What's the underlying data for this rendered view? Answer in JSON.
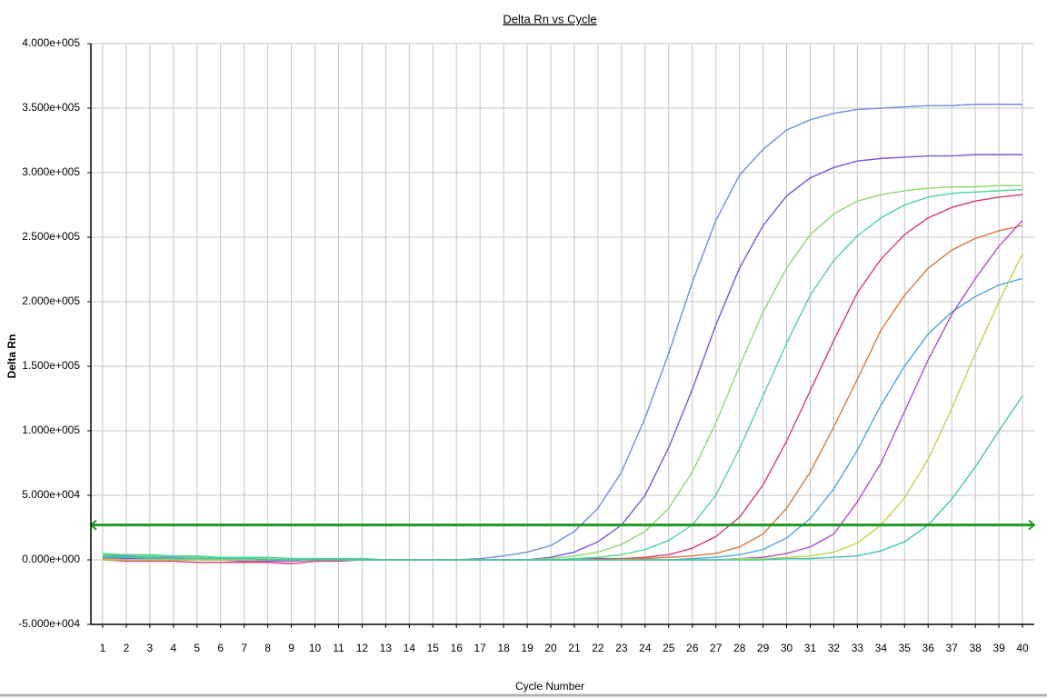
{
  "chart_data": {
    "type": "line",
    "title": "Delta Rn vs Cycle",
    "x_label": "Cycle Number",
    "y_label": "Delta Rn",
    "x": [
      1,
      2,
      3,
      4,
      5,
      6,
      7,
      8,
      9,
      10,
      11,
      12,
      13,
      14,
      15,
      16,
      17,
      18,
      19,
      20,
      21,
      22,
      23,
      24,
      25,
      26,
      27,
      28,
      29,
      30,
      31,
      32,
      33,
      34,
      35,
      36,
      37,
      38,
      39,
      40
    ],
    "xlim": [
      0.5,
      40.5
    ],
    "xticks": [
      1,
      2,
      3,
      4,
      5,
      6,
      7,
      8,
      9,
      10,
      11,
      12,
      13,
      14,
      15,
      16,
      17,
      18,
      19,
      20,
      21,
      22,
      23,
      24,
      25,
      26,
      27,
      28,
      29,
      30,
      31,
      32,
      33,
      34,
      35,
      36,
      37,
      38,
      39,
      40
    ],
    "ylim": [
      -50000,
      400000
    ],
    "yticks": [
      {
        "value": -50000,
        "label": "-5.000e+004"
      },
      {
        "value": 0,
        "label": "0.000e+000"
      },
      {
        "value": 50000,
        "label": "5.000e+004"
      },
      {
        "value": 100000,
        "label": "1.000e+005"
      },
      {
        "value": 150000,
        "label": "1.500e+005"
      },
      {
        "value": 200000,
        "label": "2.000e+005"
      },
      {
        "value": 250000,
        "label": "2.500e+005"
      },
      {
        "value": 300000,
        "label": "3.000e+005"
      },
      {
        "value": 350000,
        "label": "3.500e+005"
      },
      {
        "value": 400000,
        "label": "4.000e+005"
      }
    ],
    "grid": true,
    "threshold": 27000,
    "threshold_color": "#1f9a1f",
    "series": [
      {
        "color": "#6f8fd8",
        "values": [
          3000,
          3000,
          2000,
          2000,
          2000,
          1000,
          1000,
          1000,
          1000,
          0,
          0,
          0,
          0,
          0,
          0,
          0,
          1000,
          3000,
          6000,
          11000,
          22000,
          40000,
          68000,
          110000,
          160000,
          215000,
          263000,
          298000,
          318000,
          333000,
          341000,
          346000,
          349000,
          350000,
          351000,
          352000,
          352000,
          353000,
          353000,
          353000
        ]
      },
      {
        "color": "#7c55d8",
        "values": [
          2000,
          1000,
          1000,
          1000,
          0,
          0,
          -1000,
          -1000,
          0,
          0,
          0,
          0,
          0,
          0,
          0,
          0,
          0,
          0,
          0,
          2000,
          6000,
          14000,
          27000,
          50000,
          87000,
          132000,
          182000,
          226000,
          259000,
          282000,
          296000,
          304000,
          309000,
          311000,
          312000,
          313000,
          313000,
          314000,
          314000,
          314000
        ]
      },
      {
        "color": "#8fd86c",
        "values": [
          4000,
          4000,
          3000,
          3000,
          2000,
          2000,
          2000,
          1000,
          1000,
          1000,
          1000,
          1000,
          0,
          0,
          0,
          0,
          0,
          0,
          0,
          1000,
          3000,
          6000,
          12000,
          22000,
          40000,
          68000,
          106000,
          150000,
          192000,
          226000,
          252000,
          268000,
          278000,
          283000,
          286000,
          288000,
          289000,
          289000,
          290000,
          290000
        ]
      },
      {
        "color": "#4cd69a",
        "values": [
          5000,
          4000,
          4000,
          3000,
          3000,
          2000,
          2000,
          2000,
          1000,
          1000,
          1000,
          1000,
          0,
          0,
          0,
          0,
          0,
          0,
          0,
          0,
          1000,
          2000,
          4000,
          8000,
          15000,
          27000,
          50000,
          86000,
          127000,
          168000,
          205000,
          232000,
          251000,
          265000,
          275000,
          281000,
          284000,
          285000,
          286000,
          287000
        ]
      },
      {
        "color": "#d83c6c",
        "values": [
          0,
          -1000,
          -1000,
          -1000,
          -2000,
          -2000,
          -2000,
          -2000,
          -3000,
          -1000,
          -1000,
          0,
          0,
          0,
          0,
          0,
          0,
          0,
          0,
          0,
          0,
          1000,
          1000,
          2000,
          4000,
          9000,
          18000,
          33000,
          58000,
          92000,
          131000,
          170000,
          207000,
          233000,
          252000,
          265000,
          273000,
          278000,
          281000,
          283000
        ]
      },
      {
        "color": "#d8793c",
        "values": [
          1000,
          0,
          0,
          0,
          0,
          0,
          0,
          0,
          0,
          0,
          0,
          0,
          0,
          0,
          0,
          0,
          0,
          0,
          0,
          0,
          0,
          0,
          1000,
          1000,
          2000,
          3000,
          5000,
          10000,
          20000,
          40000,
          68000,
          103000,
          140000,
          178000,
          205000,
          226000,
          240000,
          249000,
          255000,
          259000
        ]
      },
      {
        "color": "#4ca8d8",
        "values": [
          2000,
          2000,
          1000,
          1000,
          1000,
          1000,
          0,
          0,
          0,
          0,
          0,
          0,
          0,
          0,
          0,
          0,
          0,
          0,
          0,
          0,
          0,
          0,
          0,
          0,
          0,
          1000,
          2000,
          4000,
          8000,
          17000,
          32000,
          55000,
          85000,
          120000,
          150000,
          175000,
          192000,
          204000,
          213000,
          218000
        ]
      },
      {
        "color": "#b44cd8",
        "values": [
          0,
          0,
          0,
          0,
          0,
          0,
          -1000,
          -1000,
          -1000,
          0,
          0,
          0,
          0,
          0,
          0,
          0,
          0,
          0,
          0,
          0,
          0,
          0,
          0,
          0,
          0,
          0,
          0,
          1000,
          2000,
          5000,
          10000,
          20000,
          45000,
          75000,
          115000,
          155000,
          190000,
          218000,
          243000,
          263000
        ]
      },
      {
        "color": "#b8d84c",
        "values": [
          0,
          0,
          0,
          0,
          0,
          0,
          0,
          0,
          0,
          0,
          0,
          0,
          0,
          0,
          0,
          0,
          0,
          0,
          0,
          0,
          0,
          0,
          0,
          0,
          0,
          0,
          0,
          1000,
          1000,
          2000,
          3000,
          6000,
          13000,
          27000,
          48000,
          78000,
          117000,
          160000,
          200000,
          237000
        ]
      },
      {
        "color": "#3cc8b0",
        "values": [
          3000,
          2000,
          2000,
          1000,
          1000,
          1000,
          1000,
          0,
          0,
          0,
          0,
          0,
          0,
          0,
          0,
          0,
          0,
          0,
          0,
          0,
          0,
          0,
          0,
          0,
          0,
          0,
          0,
          0,
          0,
          1000,
          1000,
          2000,
          3000,
          7000,
          14000,
          27000,
          47000,
          72000,
          100000,
          127000
        ]
      }
    ]
  }
}
